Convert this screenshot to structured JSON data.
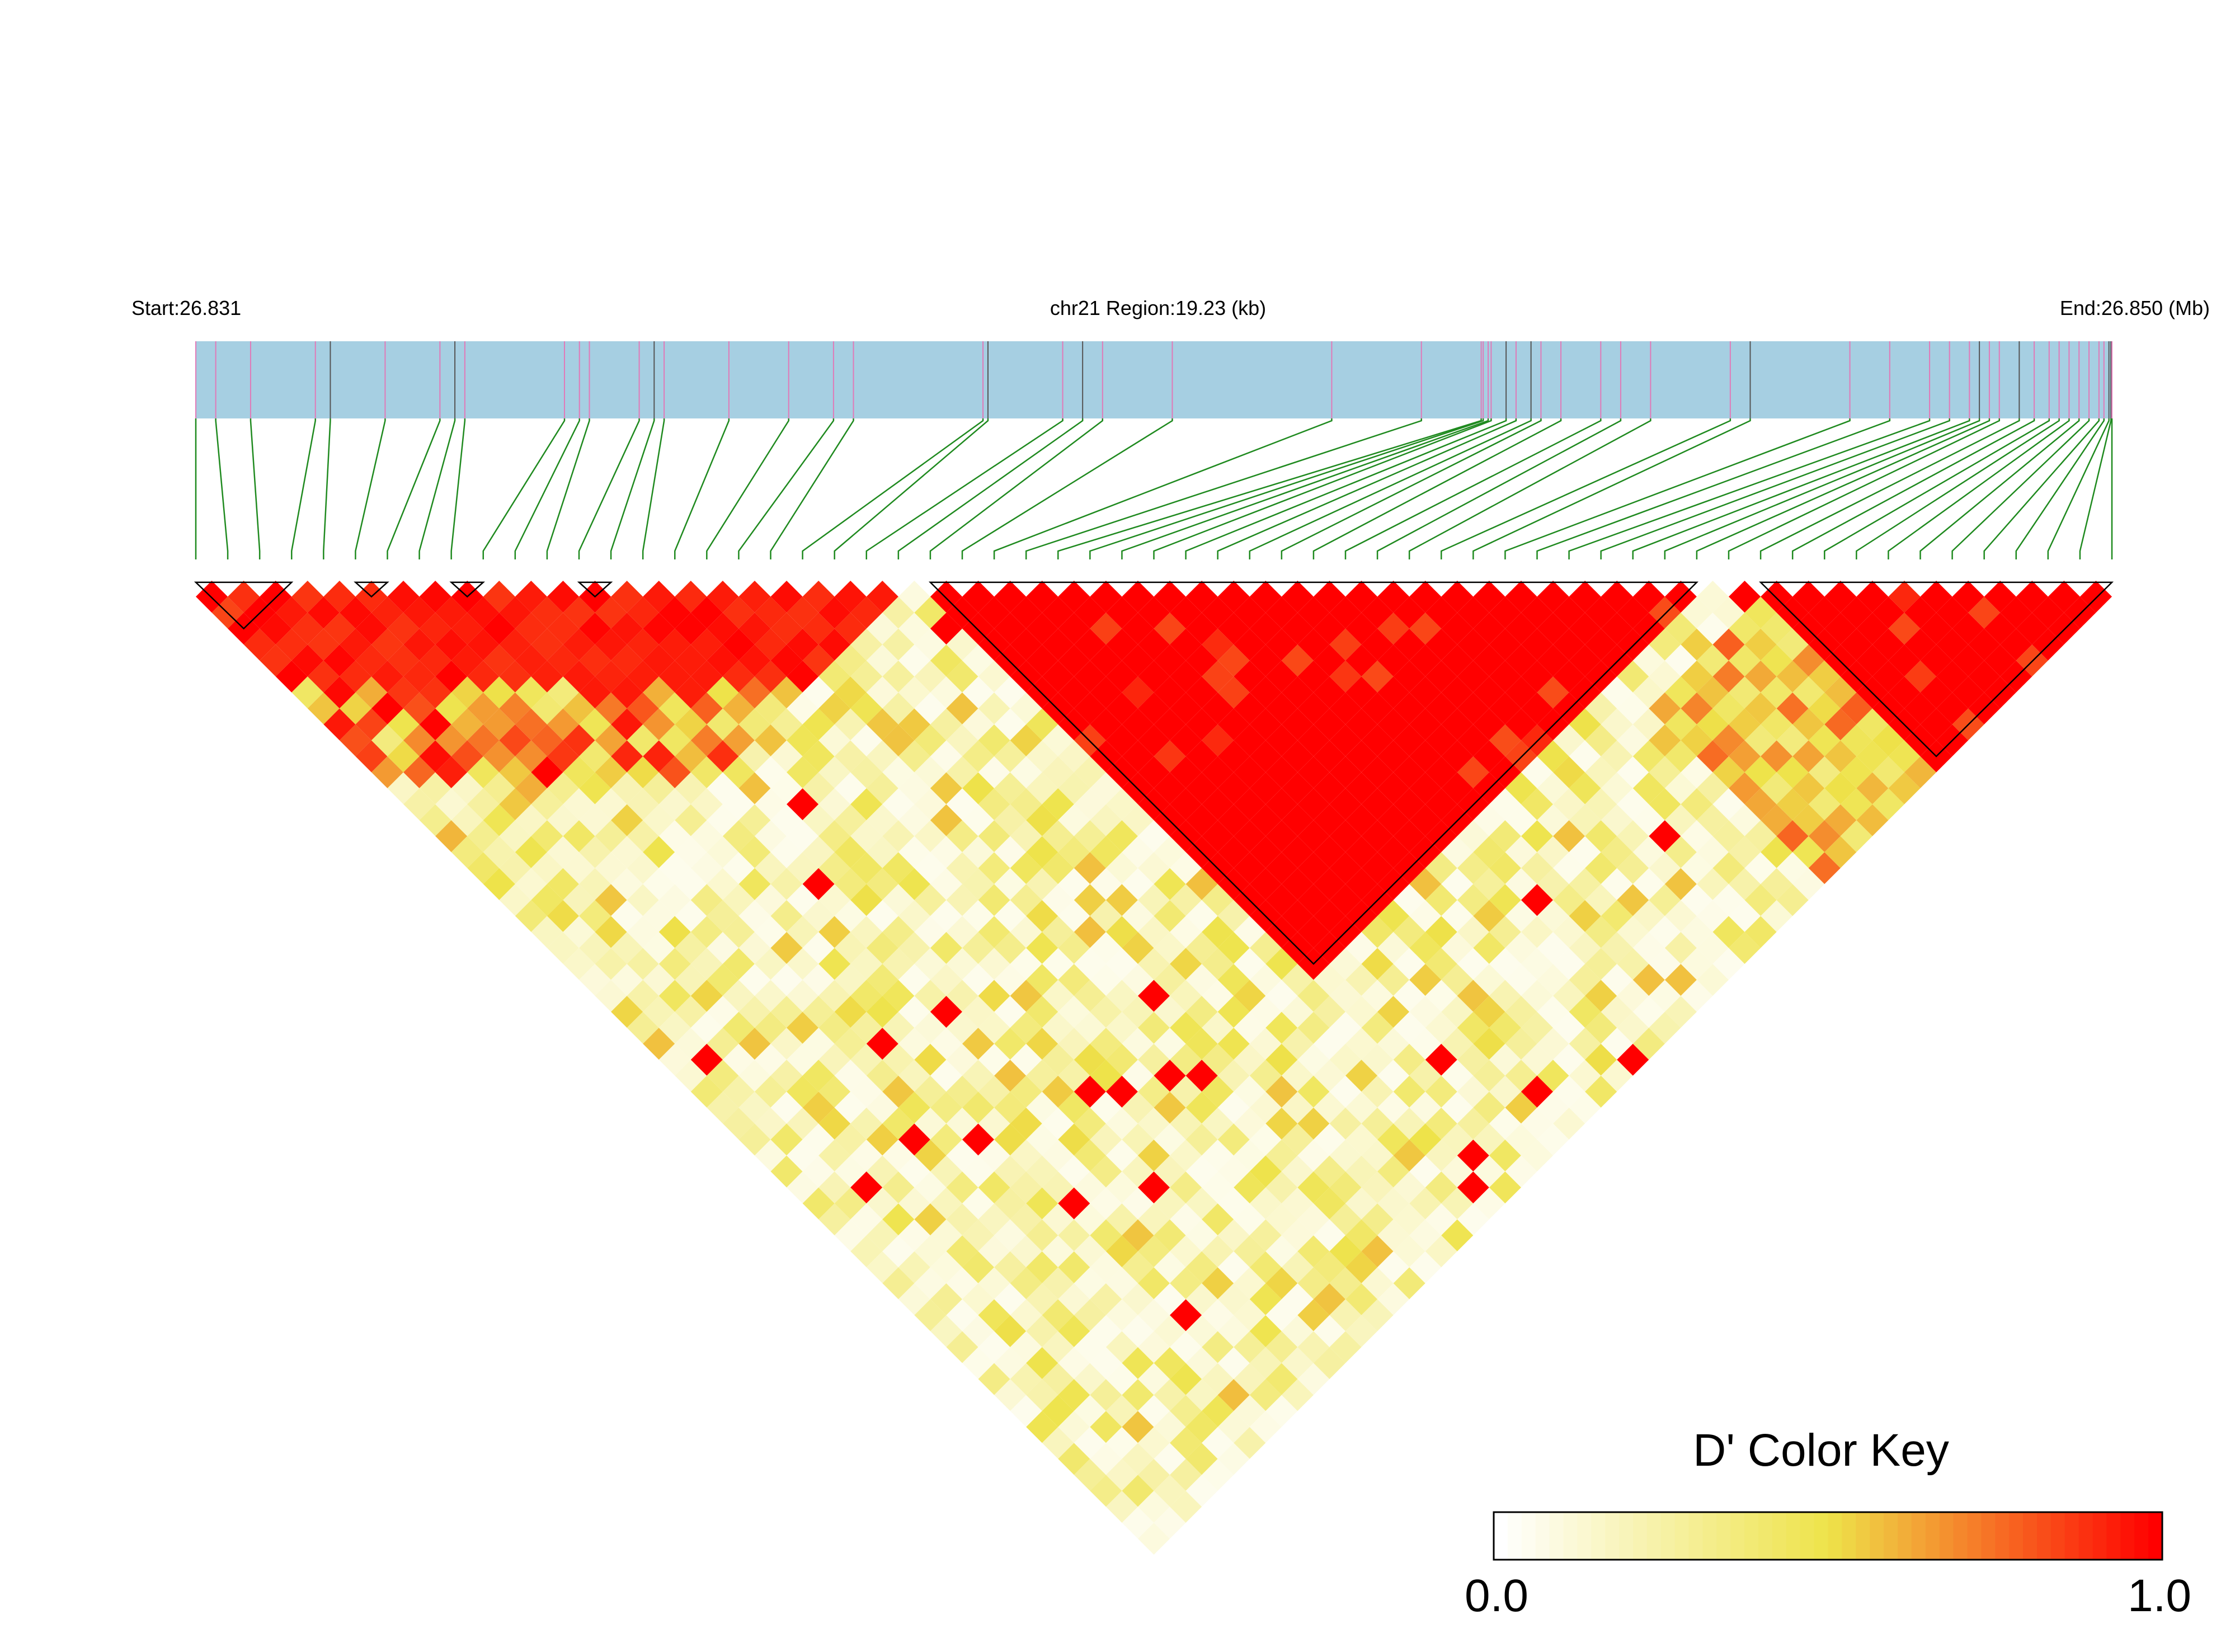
{
  "chart_data": {
    "type": "heatmap",
    "subtype": "linkage-disequilibrium-triangle",
    "header": {
      "start_label": "Start:26.831",
      "region_label": "chr21 Region:19.23 (kb)",
      "end_label": "End:26.850 (Mb)"
    },
    "region": {
      "chromosome": "chr21",
      "start_mb": 26.831,
      "end_mb": 26.85,
      "length_kb": 19.23
    },
    "snp_count": 61,
    "snp_positions_kb": [
      0.0,
      0.2,
      0.55,
      1.2,
      1.35,
      1.9,
      2.45,
      2.6,
      2.7,
      3.7,
      3.85,
      3.95,
      4.45,
      4.6,
      4.7,
      5.35,
      5.95,
      6.4,
      6.6,
      7.9,
      7.95,
      8.7,
      8.9,
      9.1,
      9.8,
      11.4,
      12.3,
      12.9,
      12.92,
      12.97,
      13.0,
      13.15,
      13.25,
      13.4,
      13.5,
      13.7,
      14.1,
      14.3,
      14.6,
      15.4,
      15.6,
      16.6,
      17.0,
      17.4,
      17.6,
      17.8,
      17.9,
      18.0,
      18.1,
      18.3,
      18.45,
      18.6,
      18.7,
      18.8,
      18.9,
      19.0,
      19.1,
      19.15,
      19.2,
      19.22,
      19.23
    ],
    "haplotype_blocks": [
      [
        0,
        3
      ],
      [
        5,
        6
      ],
      [
        8,
        9
      ],
      [
        12,
        13
      ],
      [
        23,
        47
      ],
      [
        49,
        60
      ]
    ],
    "color_key": {
      "title": "D' Color Key",
      "min_label": "0.0",
      "max_label": "1.0",
      "colors": [
        "#ffffff",
        "#eee34a",
        "#ff0000"
      ]
    }
  }
}
